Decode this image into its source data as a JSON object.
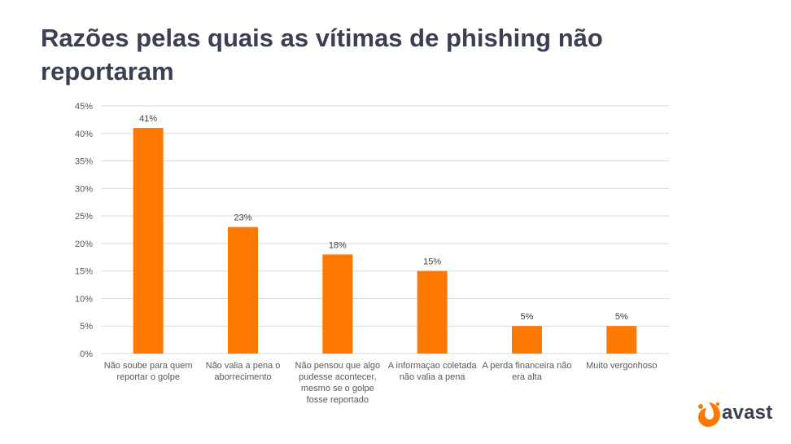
{
  "title": "Razões pelas quais as vítimas de phishing não reportaram",
  "brand": {
    "name": "avast",
    "color": "#ff7800",
    "text_color": "#3a3f52"
  },
  "colors": {
    "bar": "#ff7800",
    "grid": "#d9d9d9",
    "title": "#3a3f52"
  },
  "chart_data": {
    "type": "bar",
    "categories": [
      "Não soube para quem reportar o golpe",
      "Não valia a pena o aborrecimento",
      "Não pensou que algo pudesse acontecer, mesmo se o golpe fosse reportado",
      "A informaçao coletada não valia a pena",
      "A perda financeira não era alta",
      "Muito vergonhoso"
    ],
    "values": [
      41,
      23,
      18,
      15,
      5,
      5
    ],
    "value_labels": [
      "41%",
      "23%",
      "18%",
      "15%",
      "5%",
      "5%"
    ],
    "yticks": [
      0,
      5,
      10,
      15,
      20,
      25,
      30,
      35,
      40,
      45
    ],
    "ytick_labels": [
      "0%",
      "5%",
      "10%",
      "15%",
      "20%",
      "25%",
      "30%",
      "35%",
      "40%",
      "45%"
    ],
    "ylim": [
      0,
      45
    ],
    "grid": true,
    "legend": "none"
  }
}
